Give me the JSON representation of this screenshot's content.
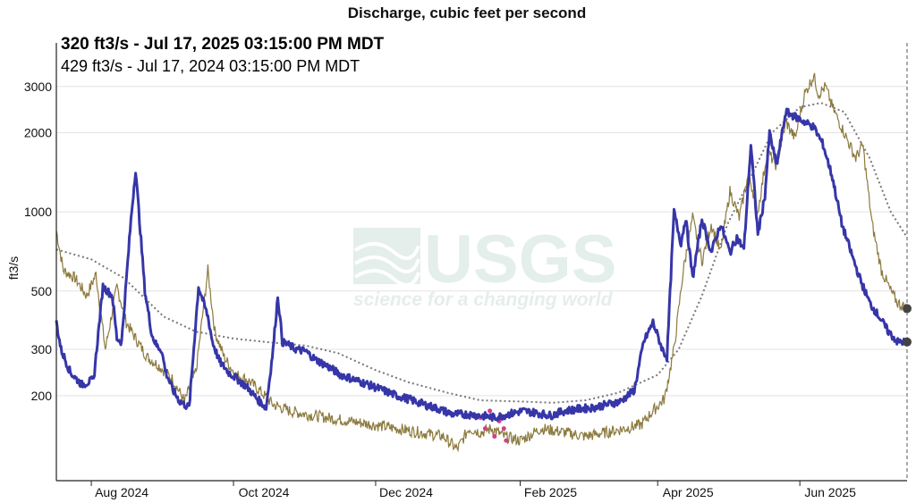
{
  "chart_data": {
    "type": "line",
    "title": "Discharge, cubic feet per second",
    "ylabel": "ft3/s",
    "yscale": "log",
    "ylim": [
      95,
      4000
    ],
    "y_ticks": [
      200,
      300,
      500,
      1000,
      2000,
      3000
    ],
    "y_tick_labels": [
      "200",
      "300",
      "500",
      "1000",
      "2000",
      "3000"
    ],
    "x_ticks": [
      "2024-08-01",
      "2024-10-01",
      "2024-12-01",
      "2025-02-01",
      "2025-04-01",
      "2025-06-01"
    ],
    "x_tick_labels": [
      "Aug 2024",
      "Oct 2024",
      "Dec 2024",
      "Feb 2025",
      "Apr 2025",
      "Jun 2025"
    ],
    "xlim": [
      "2024-07-17",
      "2025-07-17"
    ],
    "grid": true,
    "legend": {
      "current": "320 ft3/s - Jul 17, 2025 03:15:00 PM MDT",
      "prior": "429 ft3/s - Jul 17, 2024 03:15:00 PM MDT"
    },
    "colors": {
      "current": "#3636a8",
      "prior": "#8c7a3e",
      "median": "#777777",
      "estimated": "#d13f86",
      "grid": "#e3e3e3"
    },
    "watermark": {
      "title": "USGS",
      "tagline": "science for a changing world"
    },
    "series": [
      {
        "name": "320 ft3/s - Jul 17, 2025 03:15:00 PM MDT",
        "x": [
          "2024-07-17",
          "2024-07-19",
          "2024-07-23",
          "2024-07-28",
          "2024-08-02",
          "2024-08-06",
          "2024-08-10",
          "2024-08-12",
          "2024-08-14",
          "2024-08-18",
          "2024-08-20",
          "2024-08-24",
          "2024-08-27",
          "2024-08-29",
          "2024-08-31",
          "2024-09-02",
          "2024-09-05",
          "2024-09-08",
          "2024-09-12",
          "2024-09-16",
          "2024-09-20",
          "2024-09-22",
          "2024-09-25",
          "2024-09-29",
          "2024-10-03",
          "2024-10-07",
          "2024-10-11",
          "2024-10-15",
          "2024-10-18",
          "2024-10-20",
          "2024-10-22",
          "2024-10-25",
          "2024-10-28",
          "2024-11-01",
          "2024-11-05",
          "2024-11-10",
          "2024-11-16",
          "2024-11-22",
          "2024-11-28",
          "2024-12-04",
          "2024-12-10",
          "2024-12-16",
          "2024-12-22",
          "2024-12-28",
          "2025-01-03",
          "2025-01-09",
          "2025-01-15",
          "2025-01-21",
          "2025-01-27",
          "2025-02-02",
          "2025-02-08",
          "2025-02-14",
          "2025-02-20",
          "2025-02-26",
          "2025-03-04",
          "2025-03-10",
          "2025-03-16",
          "2025-03-22",
          "2025-03-26",
          "2025-03-30",
          "2025-04-03",
          "2025-04-05",
          "2025-04-08",
          "2025-04-11",
          "2025-04-13",
          "2025-04-16",
          "2025-04-20",
          "2025-04-24",
          "2025-04-28",
          "2025-05-02",
          "2025-05-05",
          "2025-05-08",
          "2025-05-11",
          "2025-05-14",
          "2025-05-17",
          "2025-05-19",
          "2025-05-22",
          "2025-05-26",
          "2025-05-30",
          "2025-06-03",
          "2025-06-07",
          "2025-06-11",
          "2025-06-15",
          "2025-06-19",
          "2025-06-23",
          "2025-06-27",
          "2025-07-01",
          "2025-07-05",
          "2025-07-09",
          "2025-07-13",
          "2025-07-17"
        ],
        "values": [
          380,
          300,
          245,
          220,
          230,
          520,
          480,
          330,
          320,
          930,
          1450,
          500,
          340,
          310,
          300,
          245,
          210,
          190,
          180,
          520,
          400,
          320,
          270,
          245,
          230,
          215,
          195,
          180,
          300,
          480,
          320,
          310,
          300,
          295,
          275,
          260,
          240,
          230,
          220,
          210,
          200,
          193,
          185,
          178,
          170,
          170,
          168,
          165,
          170,
          175,
          172,
          168,
          175,
          178,
          180,
          185,
          190,
          210,
          320,
          380,
          300,
          280,
          1000,
          760,
          950,
          560,
          940,
          700,
          900,
          700,
          800,
          720,
          1800,
          820,
          1150,
          2000,
          1500,
          2400,
          2300,
          2200,
          2100,
          1800,
          1350,
          900,
          700,
          550,
          450,
          400,
          350,
          320,
          320
        ]
      },
      {
        "name": "429 ft3/s - Jul 17, 2024 03:15:00 PM MDT",
        "x": [
          "2024-07-17",
          "2024-07-20",
          "2024-07-25",
          "2024-07-30",
          "2024-08-03",
          "2024-08-07",
          "2024-08-12",
          "2024-08-16",
          "2024-08-20",
          "2024-08-25",
          "2024-08-30",
          "2024-09-05",
          "2024-09-10",
          "2024-09-15",
          "2024-09-20",
          "2024-09-23",
          "2024-09-27",
          "2024-10-02",
          "2024-10-07",
          "2024-10-12",
          "2024-10-18",
          "2024-10-25",
          "2024-11-01",
          "2024-11-10",
          "2024-11-20",
          "2024-11-30",
          "2024-12-10",
          "2024-12-20",
          "2024-12-30",
          "2025-01-05",
          "2025-01-10",
          "2025-01-15",
          "2025-01-20",
          "2025-01-25",
          "2025-02-01",
          "2025-02-10",
          "2025-02-20",
          "2025-03-01",
          "2025-03-10",
          "2025-03-18",
          "2025-03-25",
          "2025-03-30",
          "2025-04-04",
          "2025-04-08",
          "2025-04-12",
          "2025-04-16",
          "2025-04-20",
          "2025-04-24",
          "2025-04-28",
          "2025-05-02",
          "2025-05-06",
          "2025-05-10",
          "2025-05-14",
          "2025-05-18",
          "2025-05-22",
          "2025-05-26",
          "2025-05-30",
          "2025-06-03",
          "2025-06-07",
          "2025-06-09",
          "2025-06-12",
          "2025-06-15",
          "2025-06-20",
          "2025-06-25",
          "2025-06-28",
          "2025-07-02",
          "2025-07-06",
          "2025-07-10",
          "2025-07-13",
          "2025-07-17"
        ],
        "values": [
          850,
          600,
          560,
          480,
          580,
          300,
          520,
          380,
          330,
          280,
          260,
          230,
          190,
          250,
          600,
          350,
          280,
          240,
          230,
          210,
          185,
          175,
          170,
          165,
          160,
          155,
          150,
          145,
          140,
          125,
          150,
          145,
          150,
          140,
          135,
          150,
          145,
          140,
          145,
          150,
          155,
          175,
          195,
          300,
          600,
          950,
          650,
          900,
          700,
          1200,
          950,
          1400,
          1000,
          1700,
          1500,
          2200,
          1900,
          2800,
          3300,
          2800,
          3000,
          2500,
          2000,
          1600,
          1800,
          900,
          600,
          500,
          450,
          429
        ]
      },
      {
        "name": "",
        "x": [
          "2024-07-17",
          "2024-08-01",
          "2024-08-15",
          "2024-09-01",
          "2024-09-15",
          "2024-10-01",
          "2024-10-15",
          "2024-11-01",
          "2024-11-15",
          "2024-12-01",
          "2024-12-15",
          "2025-01-01",
          "2025-01-15",
          "2025-02-01",
          "2025-02-15",
          "2025-03-01",
          "2025-03-15",
          "2025-04-01",
          "2025-04-10",
          "2025-04-20",
          "2025-05-01",
          "2025-05-10",
          "2025-05-20",
          "2025-06-01",
          "2025-06-10",
          "2025-06-20",
          "2025-07-01",
          "2025-07-10",
          "2025-07-17"
        ],
        "values": [
          720,
          660,
          560,
          400,
          350,
          330,
          320,
          310,
          290,
          250,
          225,
          205,
          192,
          190,
          188,
          192,
          205,
          240,
          300,
          480,
          900,
          1300,
          2000,
          2500,
          2600,
          2400,
          1600,
          1000,
          800
        ]
      },
      {
        "name": "",
        "x": [
          "2025-01-15",
          "2025-01-17",
          "2025-01-19",
          "2025-01-21",
          "2025-01-23",
          "2025-01-25",
          "2025-01-26",
          "2025-01-28"
        ],
        "values": [
          165,
          150,
          175,
          140,
          160,
          150,
          135,
          170
        ]
      }
    ]
  }
}
